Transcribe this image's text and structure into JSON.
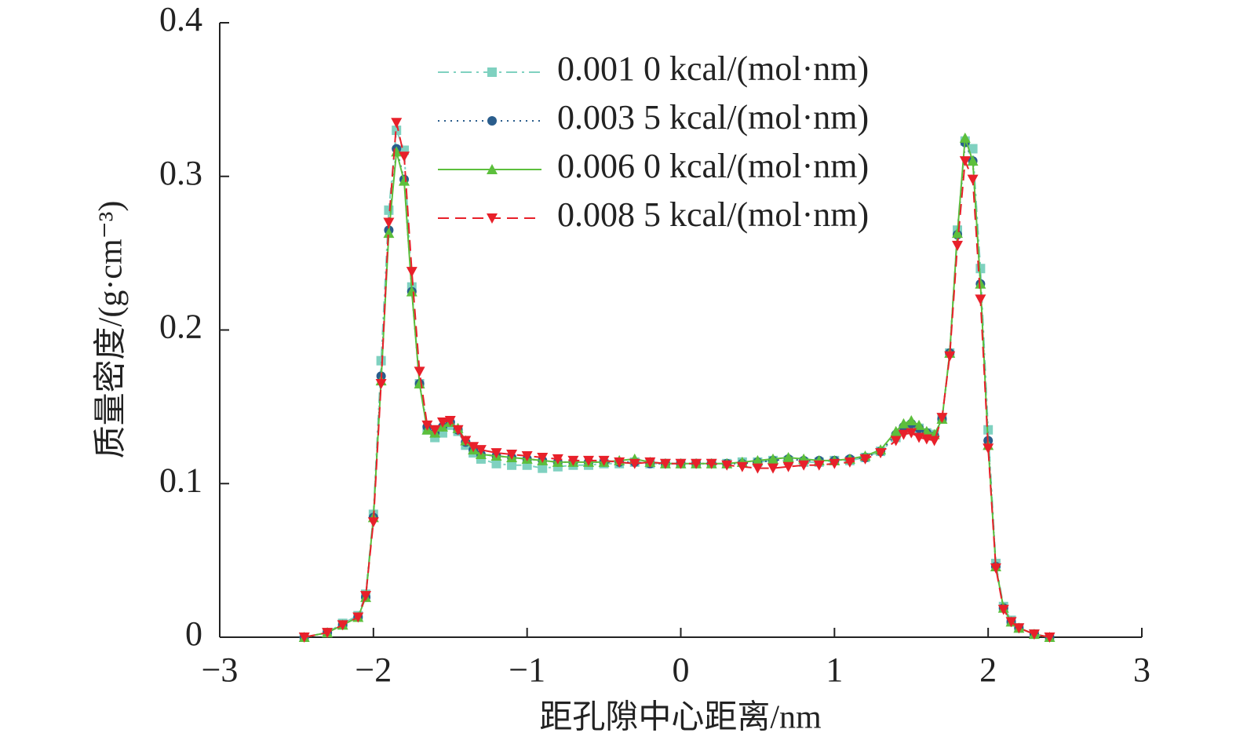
{
  "chart_data": {
    "type": "line",
    "x_label": "距孔隙中心距离/nm",
    "y_label": "质量密度/(g·cm⁻³)",
    "xlim": [
      -3,
      3
    ],
    "xticks": [
      {
        "value": -3,
        "label": "−3"
      },
      {
        "value": -2,
        "label": "−2"
      },
      {
        "value": -1,
        "label": "−1"
      },
      0,
      1,
      2,
      3
    ],
    "ylim": [
      0,
      0.4
    ],
    "yticks": [
      0,
      0.1,
      0.2,
      0.3,
      0.4
    ],
    "legend": "top-right",
    "x": [
      -2.45,
      -2.3,
      -2.2,
      -2.1,
      -2.05,
      -2.0,
      -1.95,
      -1.9,
      -1.85,
      -1.8,
      -1.75,
      -1.7,
      -1.65,
      -1.6,
      -1.55,
      -1.5,
      -1.45,
      -1.4,
      -1.35,
      -1.3,
      -1.2,
      -1.1,
      -1.0,
      -0.9,
      -0.8,
      -0.7,
      -0.6,
      -0.5,
      -0.4,
      -0.3,
      -0.2,
      -0.1,
      0,
      0.1,
      0.2,
      0.3,
      0.4,
      0.5,
      0.6,
      0.7,
      0.8,
      0.9,
      1.0,
      1.1,
      1.2,
      1.3,
      1.4,
      1.45,
      1.5,
      1.55,
      1.6,
      1.65,
      1.7,
      1.75,
      1.8,
      1.85,
      1.9,
      1.95,
      2.0,
      2.05,
      2.1,
      2.15,
      2.2,
      2.3,
      2.4
    ],
    "series": [
      {
        "name": "0.001 0 kcal/(mol·nm)",
        "color": "#7fd1c0",
        "marker": "square",
        "dash": "dashdot",
        "values": [
          0,
          0.003,
          0.009,
          0.014,
          0.028,
          0.08,
          0.18,
          0.278,
          0.33,
          0.317,
          0.228,
          0.165,
          0.135,
          0.13,
          0.133,
          0.138,
          0.134,
          0.125,
          0.12,
          0.116,
          0.113,
          0.112,
          0.112,
          0.11,
          0.111,
          0.112,
          0.112,
          0.113,
          0.113,
          0.114,
          0.113,
          0.113,
          0.113,
          0.113,
          0.113,
          0.113,
          0.114,
          0.114,
          0.115,
          0.115,
          0.114,
          0.114,
          0.115,
          0.115,
          0.117,
          0.121,
          0.13,
          0.135,
          0.137,
          0.136,
          0.133,
          0.132,
          0.142,
          0.185,
          0.265,
          0.323,
          0.318,
          0.24,
          0.135,
          0.048,
          0.02,
          0.011,
          0.006,
          0.002,
          0
        ]
      },
      {
        "name": "0.003 5 kcal/(mol·nm)",
        "color": "#2a5d8c",
        "marker": "circle",
        "dash": "dotted",
        "values": [
          0,
          0.003,
          0.008,
          0.013,
          0.026,
          0.078,
          0.17,
          0.265,
          0.318,
          0.298,
          0.225,
          0.165,
          0.137,
          0.133,
          0.137,
          0.14,
          0.135,
          0.127,
          0.122,
          0.119,
          0.118,
          0.117,
          0.116,
          0.115,
          0.114,
          0.114,
          0.114,
          0.114,
          0.114,
          0.114,
          0.113,
          0.113,
          0.113,
          0.113,
          0.113,
          0.113,
          0.113,
          0.114,
          0.115,
          0.116,
          0.115,
          0.115,
          0.115,
          0.116,
          0.117,
          0.121,
          0.132,
          0.137,
          0.139,
          0.136,
          0.133,
          0.131,
          0.142,
          0.185,
          0.262,
          0.322,
          0.31,
          0.23,
          0.128,
          0.046,
          0.019,
          0.01,
          0.006,
          0.002,
          0
        ]
      },
      {
        "name": "0.006 0 kcal/(mol·nm)",
        "color": "#5cbf3c",
        "marker": "triangle-up",
        "dash": "solid",
        "values": [
          0,
          0.003,
          0.008,
          0.013,
          0.026,
          0.078,
          0.167,
          0.263,
          0.316,
          0.297,
          0.225,
          0.165,
          0.135,
          0.133,
          0.137,
          0.14,
          0.136,
          0.128,
          0.122,
          0.119,
          0.118,
          0.117,
          0.116,
          0.115,
          0.114,
          0.114,
          0.114,
          0.114,
          0.115,
          0.116,
          0.114,
          0.113,
          0.113,
          0.113,
          0.113,
          0.113,
          0.114,
          0.115,
          0.116,
          0.117,
          0.116,
          0.115,
          0.115,
          0.116,
          0.118,
          0.122,
          0.134,
          0.139,
          0.141,
          0.138,
          0.134,
          0.132,
          0.142,
          0.185,
          0.263,
          0.325,
          0.31,
          0.23,
          0.125,
          0.046,
          0.019,
          0.01,
          0.006,
          0.002,
          0
        ]
      },
      {
        "name": "0.008 5 kcal/(mol·nm)",
        "color": "#e8202a",
        "marker": "triangle-down",
        "dash": "dashed",
        "values": [
          0,
          0.003,
          0.008,
          0.013,
          0.027,
          0.075,
          0.165,
          0.27,
          0.335,
          0.313,
          0.238,
          0.173,
          0.138,
          0.135,
          0.14,
          0.141,
          0.135,
          0.128,
          0.124,
          0.122,
          0.12,
          0.119,
          0.118,
          0.117,
          0.116,
          0.115,
          0.115,
          0.115,
          0.114,
          0.113,
          0.114,
          0.113,
          0.113,
          0.113,
          0.113,
          0.112,
          0.111,
          0.11,
          0.11,
          0.111,
          0.112,
          0.112,
          0.113,
          0.114,
          0.116,
          0.12,
          0.128,
          0.132,
          0.133,
          0.13,
          0.129,
          0.128,
          0.143,
          0.183,
          0.255,
          0.31,
          0.298,
          0.22,
          0.123,
          0.045,
          0.018,
          0.01,
          0.006,
          0.002,
          0
        ]
      }
    ]
  }
}
